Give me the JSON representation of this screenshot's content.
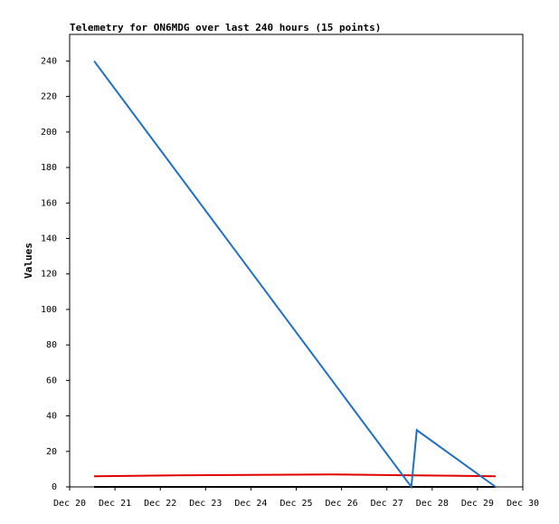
{
  "chart_data": {
    "type": "line",
    "title": "Telemetry for ON6MDG over last 240 hours (15 points)",
    "y_label": "Values",
    "xlim": [
      20,
      30
    ],
    "xticks": [
      {
        "value": 20,
        "label": "Dec 20"
      },
      {
        "value": 21,
        "label": "Dec 21"
      },
      {
        "value": 22,
        "label": "Dec 22"
      },
      {
        "value": 23,
        "label": "Dec 23"
      },
      {
        "value": 24,
        "label": "Dec 24"
      },
      {
        "value": 25,
        "label": "Dec 25"
      },
      {
        "value": 26,
        "label": "Dec 26"
      },
      {
        "value": 27,
        "label": "Dec 27"
      },
      {
        "value": 28,
        "label": "Dec 28"
      },
      {
        "value": 29,
        "label": "Dec 29"
      },
      {
        "value": 30,
        "label": "Dec 30"
      }
    ],
    "ylim": [
      0,
      255
    ],
    "yticks": [
      0,
      20,
      40,
      60,
      80,
      100,
      120,
      140,
      160,
      180,
      200,
      220,
      240
    ],
    "series": [
      {
        "color": "#000000",
        "x": [
          20.54,
          29.4
        ],
        "values": [
          0,
          0
        ]
      },
      {
        "color": "#e00000",
        "x": [
          20.54,
          22.3,
          25.8,
          27.6,
          29.4
        ],
        "values": [
          6,
          6.5,
          7,
          6.5,
          6
        ]
      },
      {
        "color": "#1f6fc5",
        "x": [
          20.54,
          27.54,
          27.66,
          29.4
        ],
        "values": [
          240,
          0,
          32,
          0
        ]
      }
    ]
  }
}
